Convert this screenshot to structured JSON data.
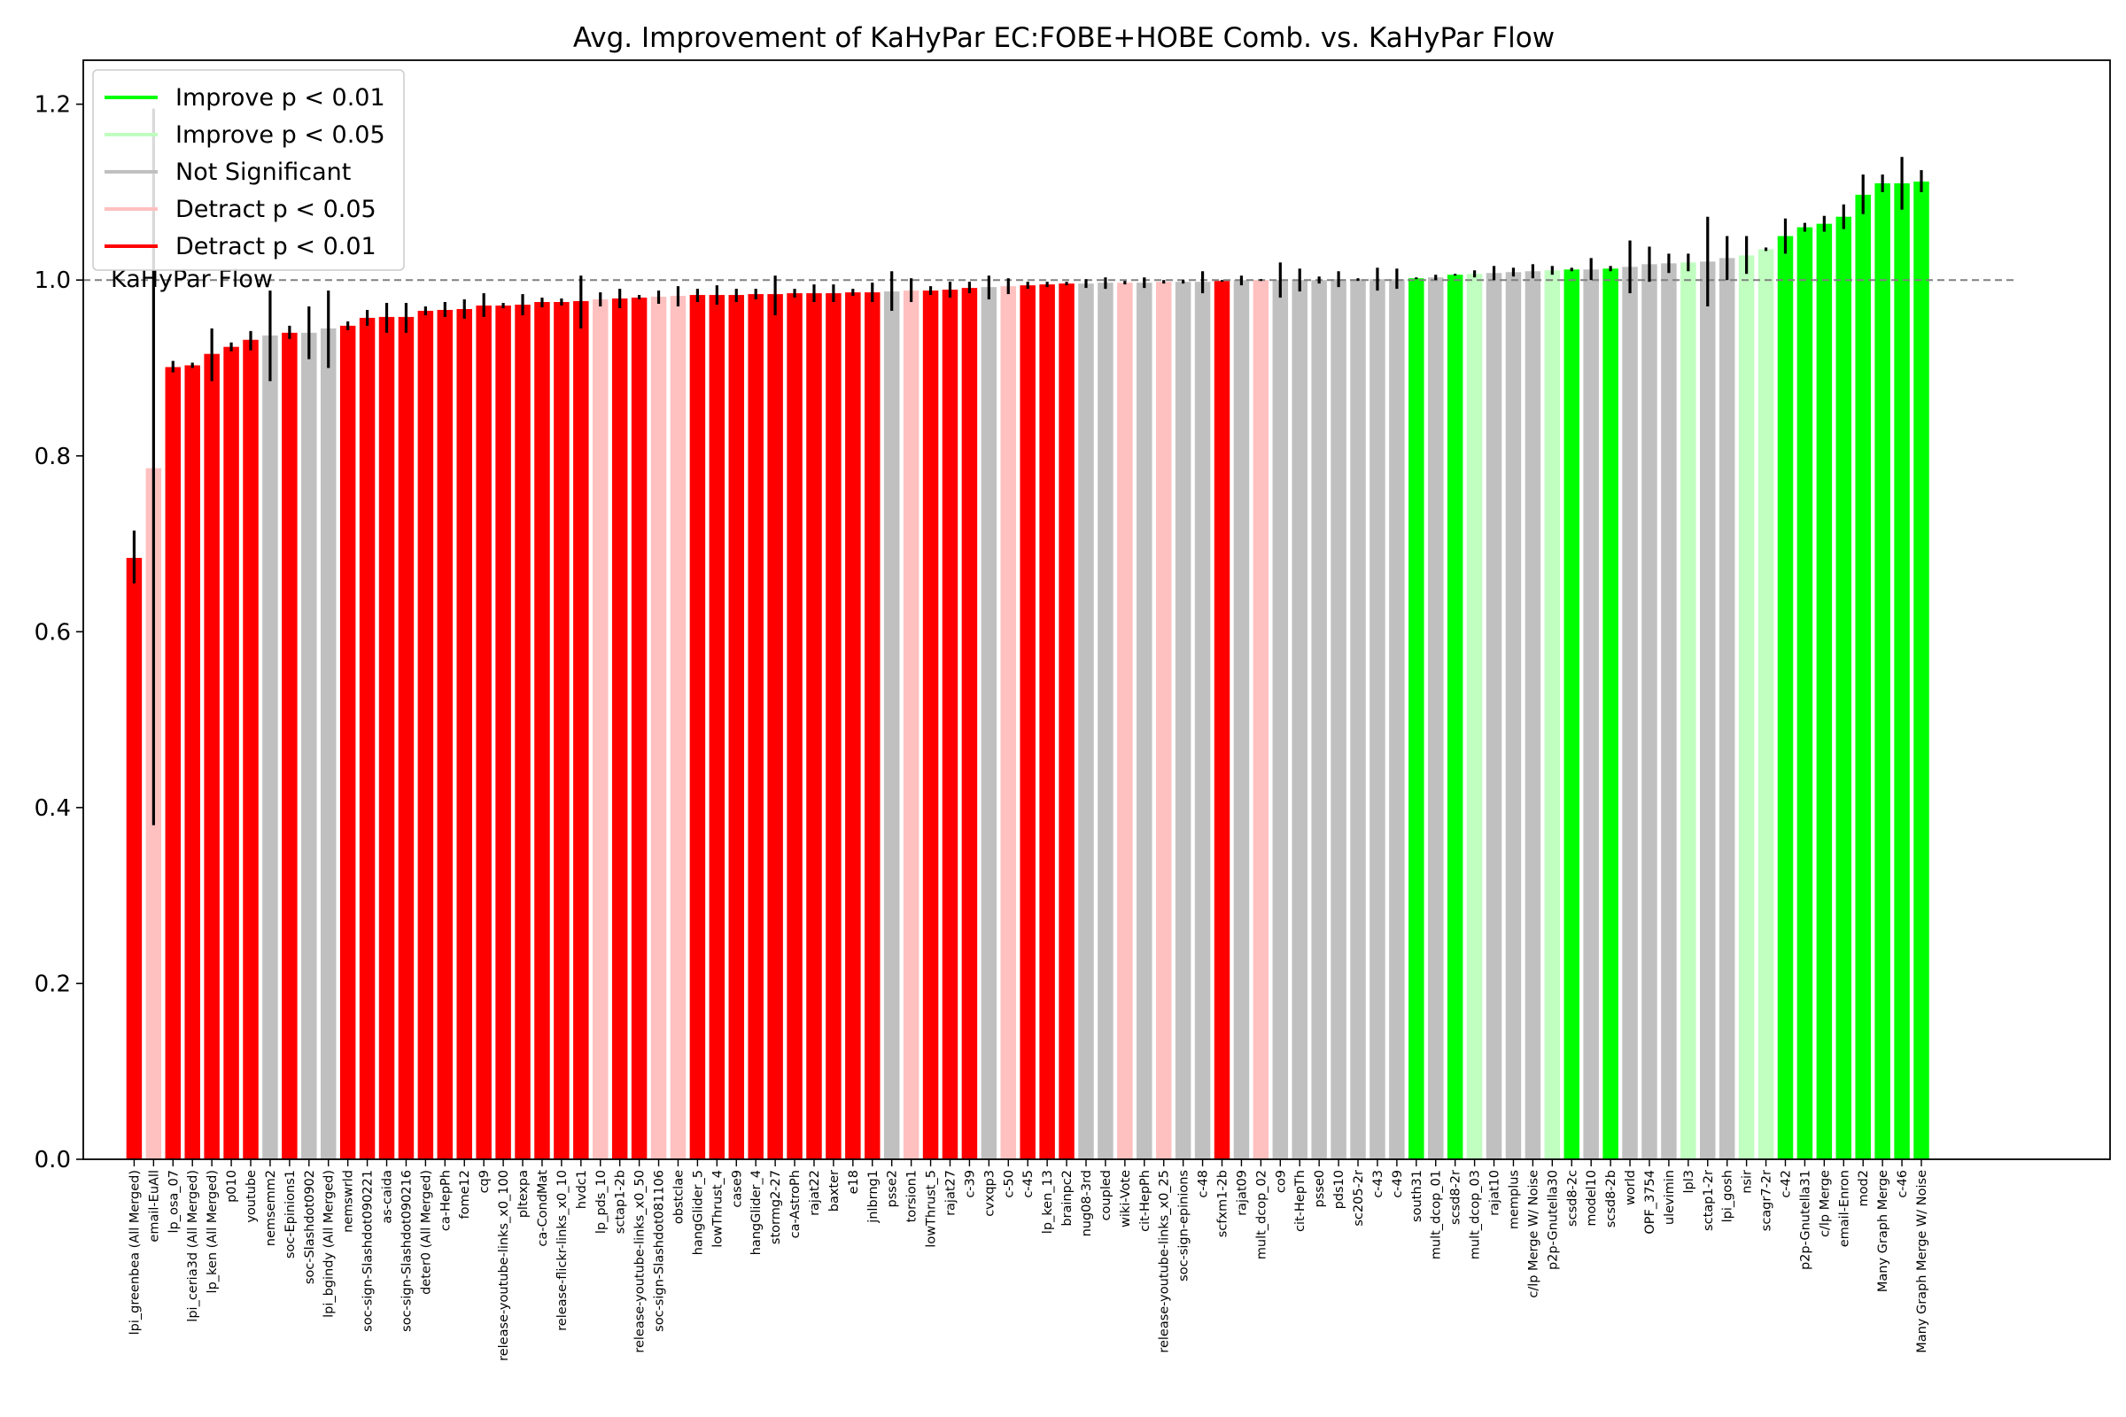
{
  "chart_data": {
    "type": "bar",
    "title": "Avg. Improvement of KaHyPar EC:FOBE+HOBE Comb. vs. KaHyPar Flow",
    "xlabel": "",
    "ylabel": "",
    "ylim": [
      0,
      1.25
    ],
    "yticks": [
      "0.0",
      "0.2",
      "0.4",
      "0.6",
      "0.8",
      "1.0",
      "1.2"
    ],
    "reference": {
      "value": 1.0,
      "label": "KaHyPar Flow"
    },
    "colors": {
      "improve01": "#00ff00",
      "improve05": "#c0ffc0",
      "ns": "#c0c0c0",
      "detract05": "#ffc0c0",
      "detract01": "#ff0000",
      "errorbar": "#000000",
      "refline": "#808080"
    },
    "legend": {
      "position": "upper-left",
      "entries": [
        {
          "label": "Improve p < 0.01",
          "category": "improve01"
        },
        {
          "label": "Improve p < 0.05",
          "category": "improve05"
        },
        {
          "label": "Not Significant",
          "category": "ns"
        },
        {
          "label": "Detract p < 0.05",
          "category": "detract05"
        },
        {
          "label": "Detract p < 0.01",
          "category": "detract01"
        }
      ]
    },
    "bars": [
      {
        "label": "lpi_greenbea (All Merged)",
        "value": 0.684,
        "lo": 0.655,
        "hi": 0.715,
        "category": "detract01"
      },
      {
        "label": "email-EuAll",
        "value": 0.786,
        "lo": 0.38,
        "hi": 1.195,
        "category": "detract05"
      },
      {
        "label": "lp_osa_07",
        "value": 0.901,
        "lo": 0.895,
        "hi": 0.908,
        "category": "detract01"
      },
      {
        "label": "lpi_ceria3d (All Merged)",
        "value": 0.903,
        "lo": 0.9,
        "hi": 0.906,
        "category": "detract01"
      },
      {
        "label": "lp_ken (All Merged)",
        "value": 0.916,
        "lo": 0.885,
        "hi": 0.945,
        "category": "detract01"
      },
      {
        "label": "p010",
        "value": 0.924,
        "lo": 0.919,
        "hi": 0.929,
        "category": "detract01"
      },
      {
        "label": "youtube",
        "value": 0.932,
        "lo": 0.92,
        "hi": 0.942,
        "category": "detract01"
      },
      {
        "label": "nemsemm2",
        "value": 0.937,
        "lo": 0.885,
        "hi": 0.988,
        "category": "ns"
      },
      {
        "label": "soc-Epinions1",
        "value": 0.94,
        "lo": 0.933,
        "hi": 0.948,
        "category": "detract01"
      },
      {
        "label": "soc-Slashdot0902",
        "value": 0.94,
        "lo": 0.91,
        "hi": 0.97,
        "category": "ns"
      },
      {
        "label": "lpi_bgindy (All Merged)",
        "value": 0.945,
        "lo": 0.9,
        "hi": 0.988,
        "category": "ns"
      },
      {
        "label": "nemswrld",
        "value": 0.948,
        "lo": 0.943,
        "hi": 0.953,
        "category": "detract01"
      },
      {
        "label": "soc-sign-Slashdot090221",
        "value": 0.957,
        "lo": 0.948,
        "hi": 0.966,
        "category": "detract01"
      },
      {
        "label": "as-caida",
        "value": 0.958,
        "lo": 0.94,
        "hi": 0.974,
        "category": "detract01"
      },
      {
        "label": "soc-sign-Slashdot090216",
        "value": 0.958,
        "lo": 0.94,
        "hi": 0.974,
        "category": "detract01"
      },
      {
        "label": "deter0 (All Merged)",
        "value": 0.965,
        "lo": 0.96,
        "hi": 0.97,
        "category": "detract01"
      },
      {
        "label": "ca-HepPh",
        "value": 0.966,
        "lo": 0.958,
        "hi": 0.975,
        "category": "detract01"
      },
      {
        "label": "fome12",
        "value": 0.967,
        "lo": 0.956,
        "hi": 0.978,
        "category": "detract01"
      },
      {
        "label": "cq9",
        "value": 0.971,
        "lo": 0.958,
        "hi": 0.985,
        "category": "detract01"
      },
      {
        "label": "release-youtube-links_x0_100",
        "value": 0.971,
        "lo": 0.968,
        "hi": 0.974,
        "category": "detract01"
      },
      {
        "label": "pltexpa",
        "value": 0.972,
        "lo": 0.96,
        "hi": 0.984,
        "category": "detract01"
      },
      {
        "label": "ca-CondMat",
        "value": 0.975,
        "lo": 0.969,
        "hi": 0.98,
        "category": "detract01"
      },
      {
        "label": "release-flickr-links_x0_10",
        "value": 0.975,
        "lo": 0.971,
        "hi": 0.979,
        "category": "detract01"
      },
      {
        "label": "hvdc1",
        "value": 0.976,
        "lo": 0.945,
        "hi": 1.005,
        "category": "detract01"
      },
      {
        "label": "lp_pds_10",
        "value": 0.978,
        "lo": 0.97,
        "hi": 0.986,
        "category": "detract05"
      },
      {
        "label": "sctap1-2b",
        "value": 0.979,
        "lo": 0.968,
        "hi": 0.99,
        "category": "detract01"
      },
      {
        "label": "release-youtube-links_x0_50",
        "value": 0.98,
        "lo": 0.978,
        "hi": 0.983,
        "category": "detract01"
      },
      {
        "label": "soc-sign-Slashdot081106",
        "value": 0.981,
        "lo": 0.973,
        "hi": 0.988,
        "category": "detract05"
      },
      {
        "label": "obstclae",
        "value": 0.982,
        "lo": 0.97,
        "hi": 0.993,
        "category": "detract05"
      },
      {
        "label": "hangGlider_5",
        "value": 0.983,
        "lo": 0.975,
        "hi": 0.99,
        "category": "detract01"
      },
      {
        "label": "lowThrust_4",
        "value": 0.983,
        "lo": 0.972,
        "hi": 0.994,
        "category": "detract01"
      },
      {
        "label": "case9",
        "value": 0.983,
        "lo": 0.975,
        "hi": 0.99,
        "category": "detract01"
      },
      {
        "label": "hangGlider_4",
        "value": 0.984,
        "lo": 0.978,
        "hi": 0.99,
        "category": "detract01"
      },
      {
        "label": "stormg2-27",
        "value": 0.984,
        "lo": 0.96,
        "hi": 1.005,
        "category": "detract01"
      },
      {
        "label": "ca-AstroPh",
        "value": 0.985,
        "lo": 0.98,
        "hi": 0.99,
        "category": "detract01"
      },
      {
        "label": "rajat22",
        "value": 0.985,
        "lo": 0.975,
        "hi": 0.995,
        "category": "detract01"
      },
      {
        "label": "baxter",
        "value": 0.985,
        "lo": 0.975,
        "hi": 0.995,
        "category": "detract01"
      },
      {
        "label": "e18",
        "value": 0.986,
        "lo": 0.982,
        "hi": 0.99,
        "category": "detract01"
      },
      {
        "label": "jnlbrng1",
        "value": 0.986,
        "lo": 0.975,
        "hi": 0.997,
        "category": "detract01"
      },
      {
        "label": "psse2",
        "value": 0.987,
        "lo": 0.965,
        "hi": 1.01,
        "category": "ns"
      },
      {
        "label": "torsion1",
        "value": 0.988,
        "lo": 0.975,
        "hi": 1.002,
        "category": "detract05"
      },
      {
        "label": "lowThrust_5",
        "value": 0.988,
        "lo": 0.983,
        "hi": 0.993,
        "category": "detract01"
      },
      {
        "label": "rajat27",
        "value": 0.989,
        "lo": 0.98,
        "hi": 0.998,
        "category": "detract01"
      },
      {
        "label": "c-39",
        "value": 0.991,
        "lo": 0.985,
        "hi": 0.998,
        "category": "detract01"
      },
      {
        "label": "cvxqp3",
        "value": 0.992,
        "lo": 0.978,
        "hi": 1.005,
        "category": "ns"
      },
      {
        "label": "c-50",
        "value": 0.993,
        "lo": 0.984,
        "hi": 1.002,
        "category": "detract05"
      },
      {
        "label": "c-45",
        "value": 0.994,
        "lo": 0.99,
        "hi": 0.998,
        "category": "detract01"
      },
      {
        "label": "lp_ken_13",
        "value": 0.995,
        "lo": 0.992,
        "hi": 0.998,
        "category": "detract01"
      },
      {
        "label": "brainpc2",
        "value": 0.996,
        "lo": 0.994,
        "hi": 0.998,
        "category": "detract01"
      },
      {
        "label": "nug08-3rd",
        "value": 0.996,
        "lo": 0.991,
        "hi": 1.001,
        "category": "ns"
      },
      {
        "label": "coupled",
        "value": 0.997,
        "lo": 0.99,
        "hi": 1.003,
        "category": "ns"
      },
      {
        "label": "wiki-Vote",
        "value": 0.997,
        "lo": 0.995,
        "hi": 0.999,
        "category": "detract05"
      },
      {
        "label": "cit-HepPh",
        "value": 0.997,
        "lo": 0.991,
        "hi": 1.003,
        "category": "ns"
      },
      {
        "label": "release-youtube-links_x0_25",
        "value": 0.998,
        "lo": 0.996,
        "hi": 1.0,
        "category": "detract05"
      },
      {
        "label": "soc-sign-epinions",
        "value": 0.998,
        "lo": 0.996,
        "hi": 1.0,
        "category": "ns"
      },
      {
        "label": "c-48",
        "value": 0.998,
        "lo": 0.985,
        "hi": 1.01,
        "category": "ns"
      },
      {
        "label": "scfxm1-2b",
        "value": 0.999,
        "lo": 0.998,
        "hi": 1.0,
        "category": "detract01"
      },
      {
        "label": "rajat09",
        "value": 1.0,
        "lo": 0.994,
        "hi": 1.005,
        "category": "ns"
      },
      {
        "label": "mult_dcop_02",
        "value": 1.0,
        "lo": 0.999,
        "hi": 1.001,
        "category": "detract05"
      },
      {
        "label": "co9",
        "value": 1.0,
        "lo": 0.98,
        "hi": 1.02,
        "category": "ns"
      },
      {
        "label": "cit-HepTh",
        "value": 1.0,
        "lo": 0.987,
        "hi": 1.013,
        "category": "ns"
      },
      {
        "label": "psse0",
        "value": 1.0,
        "lo": 0.996,
        "hi": 1.004,
        "category": "ns"
      },
      {
        "label": "pds10",
        "value": 1.001,
        "lo": 0.992,
        "hi": 1.01,
        "category": "ns"
      },
      {
        "label": "sc205-2r",
        "value": 1.001,
        "lo": 0.999,
        "hi": 1.002,
        "category": "ns"
      },
      {
        "label": "c-43",
        "value": 1.001,
        "lo": 0.988,
        "hi": 1.014,
        "category": "ns"
      },
      {
        "label": "c-49",
        "value": 1.001,
        "lo": 0.99,
        "hi": 1.013,
        "category": "ns"
      },
      {
        "label": "south31",
        "value": 1.002,
        "lo": 1.001,
        "hi": 1.003,
        "category": "improve01"
      },
      {
        "label": "mult_dcop_01",
        "value": 1.003,
        "lo": 1.0,
        "hi": 1.006,
        "category": "ns"
      },
      {
        "label": "scsd8-2r",
        "value": 1.006,
        "lo": 1.005,
        "hi": 1.007,
        "category": "improve01"
      },
      {
        "label": "mult_dcop_03",
        "value": 1.007,
        "lo": 1.003,
        "hi": 1.011,
        "category": "improve05"
      },
      {
        "label": "rajat10",
        "value": 1.008,
        "lo": 1.0,
        "hi": 1.016,
        "category": "ns"
      },
      {
        "label": "memplus",
        "value": 1.009,
        "lo": 1.004,
        "hi": 1.014,
        "category": "ns"
      },
      {
        "label": "c/lp Merge W/ Noise",
        "value": 1.01,
        "lo": 1.002,
        "hi": 1.018,
        "category": "ns"
      },
      {
        "label": "p2p-Gnutella30",
        "value": 1.011,
        "lo": 1.006,
        "hi": 1.016,
        "category": "improve05"
      },
      {
        "label": "scsd8-2c",
        "value": 1.012,
        "lo": 1.01,
        "hi": 1.014,
        "category": "improve01"
      },
      {
        "label": "model10",
        "value": 1.012,
        "lo": 1.0,
        "hi": 1.025,
        "category": "ns"
      },
      {
        "label": "scsd8-2b",
        "value": 1.013,
        "lo": 1.01,
        "hi": 1.016,
        "category": "improve01"
      },
      {
        "label": "world",
        "value": 1.015,
        "lo": 0.985,
        "hi": 1.045,
        "category": "ns"
      },
      {
        "label": "OPF_3754",
        "value": 1.018,
        "lo": 0.998,
        "hi": 1.038,
        "category": "ns"
      },
      {
        "label": "ulevimin",
        "value": 1.019,
        "lo": 1.008,
        "hi": 1.03,
        "category": "ns"
      },
      {
        "label": "lpl3",
        "value": 1.02,
        "lo": 1.01,
        "hi": 1.03,
        "category": "improve05"
      },
      {
        "label": "sctap1-2r",
        "value": 1.021,
        "lo": 0.97,
        "hi": 1.072,
        "category": "ns"
      },
      {
        "label": "lpi_gosh",
        "value": 1.025,
        "lo": 1.0,
        "hi": 1.05,
        "category": "ns"
      },
      {
        "label": "nsir",
        "value": 1.028,
        "lo": 1.007,
        "hi": 1.05,
        "category": "improve05"
      },
      {
        "label": "scagr7-2r",
        "value": 1.035,
        "lo": 1.033,
        "hi": 1.037,
        "category": "improve05"
      },
      {
        "label": "c-42",
        "value": 1.05,
        "lo": 1.03,
        "hi": 1.07,
        "category": "improve01"
      },
      {
        "label": "p2p-Gnutella31",
        "value": 1.06,
        "lo": 1.055,
        "hi": 1.065,
        "category": "improve01"
      },
      {
        "label": "c/lp Merge",
        "value": 1.064,
        "lo": 1.055,
        "hi": 1.073,
        "category": "improve01"
      },
      {
        "label": "email-Enron",
        "value": 1.072,
        "lo": 1.058,
        "hi": 1.086,
        "category": "improve01"
      },
      {
        "label": "mod2",
        "value": 1.097,
        "lo": 1.075,
        "hi": 1.12,
        "category": "improve01"
      },
      {
        "label": "Many Graph Merge",
        "value": 1.11,
        "lo": 1.1,
        "hi": 1.12,
        "category": "improve01"
      },
      {
        "label": "c-46",
        "value": 1.11,
        "lo": 1.08,
        "hi": 1.14,
        "category": "improve01"
      },
      {
        "label": "Many Graph Merge W/ Noise",
        "value": 1.112,
        "lo": 1.1,
        "hi": 1.125,
        "category": "improve01"
      }
    ]
  }
}
